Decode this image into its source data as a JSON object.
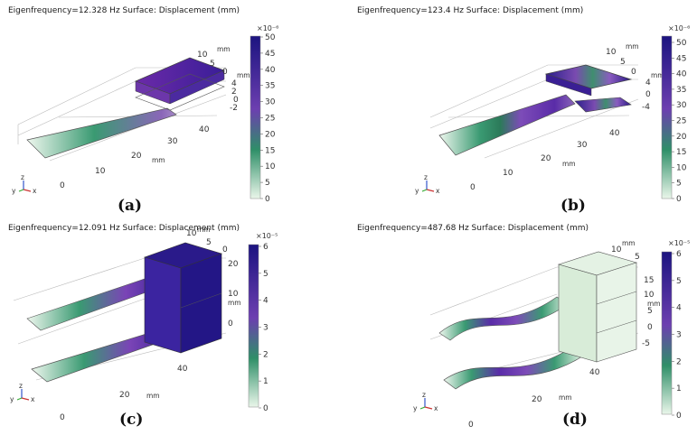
{
  "colorscale": {
    "low": "#eaf6ea",
    "mid_low": "#2f8f68",
    "mid": "#6c3fb0",
    "high": "#1c1480"
  },
  "panels": [
    {
      "title": "Eigenfrequency=12.328 Hz  Surface: Displacement (mm)",
      "caption": "(a)",
      "colorbar": {
        "exponent": "×10⁻⁶",
        "ticks": [
          "50",
          "45",
          "40",
          "35",
          "30",
          "25",
          "20",
          "15",
          "10",
          "5",
          "0"
        ]
      },
      "axes": {
        "x_ticks": [
          "0",
          "10",
          "20",
          "30",
          "40"
        ],
        "x_unit": "mm",
        "y_ticks": [
          "10",
          "5",
          "0"
        ],
        "y_unit": "mm",
        "z_ticks": [
          "4",
          "2",
          "0",
          "-2"
        ],
        "z_unit": "mm"
      },
      "triad": {
        "x": "x",
        "y": "y",
        "z": "z"
      }
    },
    {
      "title": "Eigenfrequency=123.4 Hz  Surface: Displacement (mm)",
      "caption": "(b)",
      "colorbar": {
        "exponent": "×10⁻⁶",
        "ticks": [
          "50",
          "45",
          "40",
          "35",
          "30",
          "25",
          "20",
          "15",
          "10",
          "5",
          "0"
        ]
      },
      "axes": {
        "x_ticks": [
          "0",
          "10",
          "20",
          "30",
          "40"
        ],
        "x_unit": "mm",
        "y_ticks": [
          "10",
          "5",
          "0"
        ],
        "y_unit": "mm",
        "z_ticks": [
          "4",
          "0",
          "-4"
        ],
        "z_unit": "mm"
      },
      "triad": {
        "x": "x",
        "y": "y",
        "z": "z"
      }
    },
    {
      "title": "Eigenfrequency=12.091 Hz  Surface: Displacement (mm)",
      "caption": "(c)",
      "colorbar": {
        "exponent": "×10⁻⁵",
        "ticks": [
          "6",
          "5",
          "4",
          "3",
          "2",
          "1",
          "0"
        ]
      },
      "axes": {
        "x_ticks": [
          "0",
          "20",
          "40"
        ],
        "x_unit": "mm",
        "y_ticks": [
          "10",
          "5",
          "0"
        ],
        "y_unit": "mm",
        "z_ticks": [
          "20",
          "10",
          "0"
        ],
        "z_unit": "mm"
      },
      "triad": {
        "x": "x",
        "y": "y",
        "z": "z"
      }
    },
    {
      "title": "Eigenfrequency=487.68 Hz  Surface: Displacement (mm)",
      "caption": "(d)",
      "colorbar": {
        "exponent": "×10⁻⁵",
        "ticks": [
          "6",
          "5",
          "4",
          "3",
          "2",
          "1",
          "0"
        ]
      },
      "axes": {
        "x_ticks": [
          "0",
          "20",
          "40"
        ],
        "x_unit": "mm",
        "y_ticks": [
          "10",
          "5"
        ],
        "y_unit": "mm",
        "z_ticks": [
          "15",
          "10",
          "5",
          "0",
          "-5"
        ],
        "z_unit": "mm"
      },
      "triad": {
        "x": "x",
        "y": "y",
        "z": "z"
      }
    }
  ]
}
